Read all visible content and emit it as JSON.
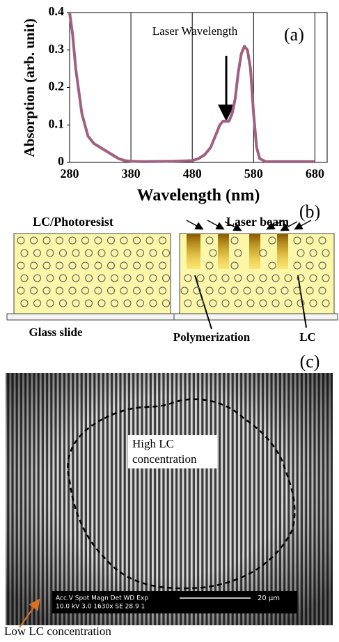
{
  "chart_data": {
    "type": "line",
    "panel_label": "(a)",
    "annotation": "Laser Wavelength",
    "x_label": "Wavelength (nm)",
    "y_label": "Absorption (arb. unit)",
    "xlim": [
      280,
      700
    ],
    "xticks": [
      280,
      380,
      480,
      580,
      680
    ],
    "ylim": [
      0,
      0.4
    ],
    "yticks": [
      0,
      0.1,
      0.2,
      0.3,
      0.4
    ],
    "grid": true,
    "x": [
      280,
      285,
      290,
      300,
      310,
      320,
      330,
      340,
      350,
      360,
      370,
      380,
      400,
      450,
      480,
      490,
      500,
      510,
      520,
      525,
      530,
      540,
      545,
      550,
      555,
      560,
      565,
      570,
      575,
      580,
      585,
      590,
      600,
      680
    ],
    "series": [
      {
        "color": "#a0607f",
        "values": [
          0.4,
          0.34,
          0.25,
          0.13,
          0.07,
          0.05,
          0.04,
          0.03,
          0.02,
          0.01,
          0.005,
          0.003,
          0.002,
          0.003,
          0.005,
          0.01,
          0.02,
          0.04,
          0.08,
          0.1,
          0.11,
          0.11,
          0.13,
          0.17,
          0.24,
          0.29,
          0.31,
          0.3,
          0.25,
          0.13,
          0.04,
          0.01,
          0.002,
          0.002
        ]
      }
    ]
  },
  "diagram": {
    "panel_label": "(b)",
    "left_label": "LC/Photoresist",
    "substrate": "Glass slide",
    "beam": "Laser beam",
    "polymer": "Polymerization",
    "lc": "LC"
  },
  "micrograph": {
    "panel_label": "(c)",
    "inside": [
      "High LC",
      "concentration"
    ],
    "outside": "Low LC concentration",
    "info_header": "Acc.V  Spot Magn   Det  WD  Exp",
    "info_values": "10.0 kV 3.0  1630x   SE  28.9  1",
    "scale": "20 μm"
  }
}
